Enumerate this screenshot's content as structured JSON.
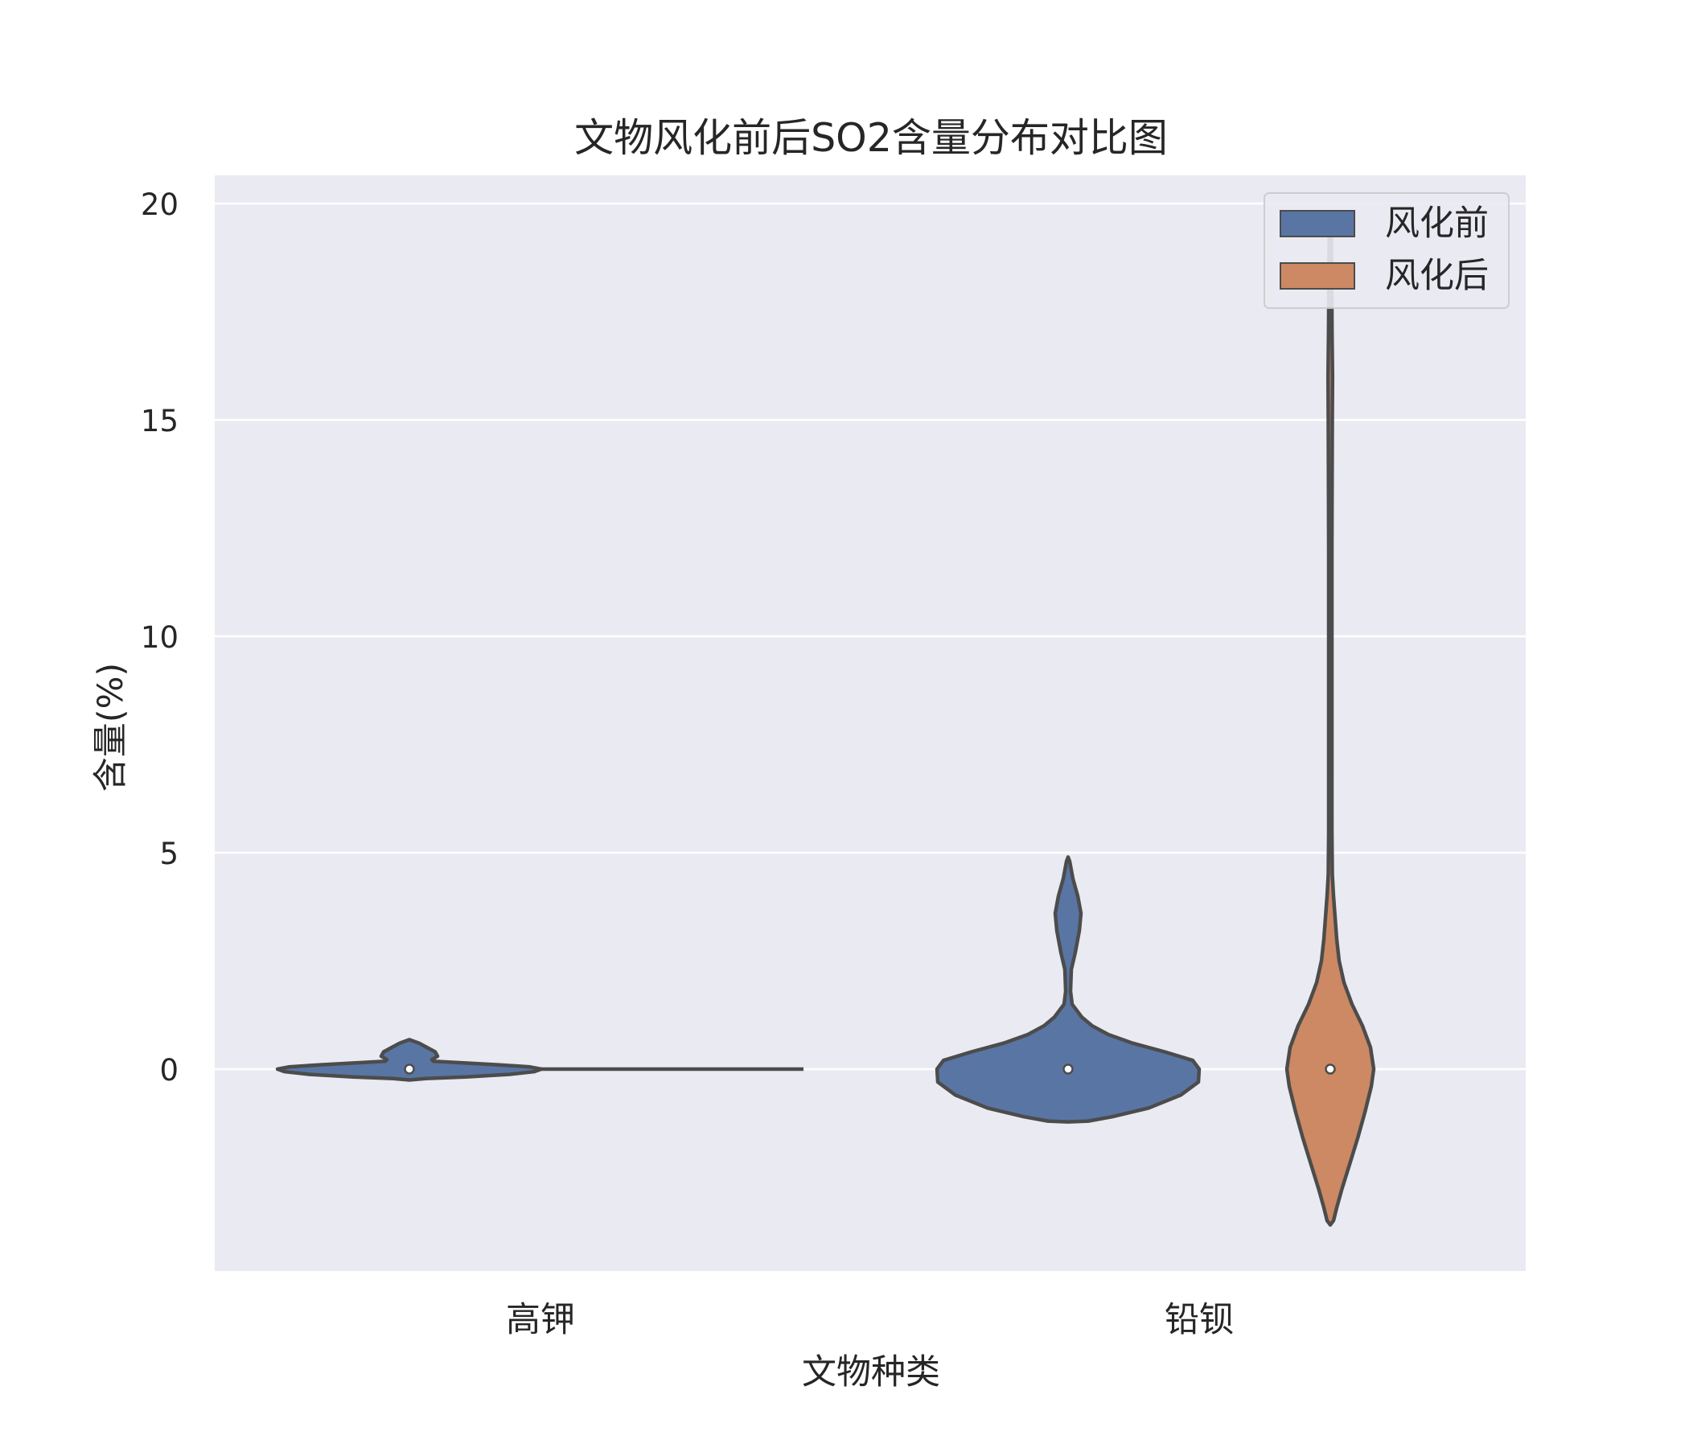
{
  "chart_data": {
    "type": "violin",
    "title": "文物风化前后SO2含量分布对比图",
    "xlabel": "文物种类",
    "ylabel": "含量(%)",
    "categories": [
      "高钾",
      "铅钡"
    ],
    "yticks": [
      0,
      5,
      10,
      15,
      20
    ],
    "ylim": [
      -4.7,
      20.6
    ],
    "grid": true,
    "legend_position": "top-right",
    "series": [
      {
        "name": "风化前",
        "color": "#5975a4",
        "medians": [
          0.0,
          0.0
        ],
        "ranges": [
          [
            -0.25,
            0.7
          ],
          [
            -1.2,
            4.9
          ]
        ]
      },
      {
        "name": "风化后",
        "color": "#cc8963",
        "medians": [
          0.0,
          0.0
        ],
        "ranges": [
          [
            0.0,
            0.0
          ],
          [
            -3.6,
            19.6
          ]
        ]
      }
    ]
  }
}
